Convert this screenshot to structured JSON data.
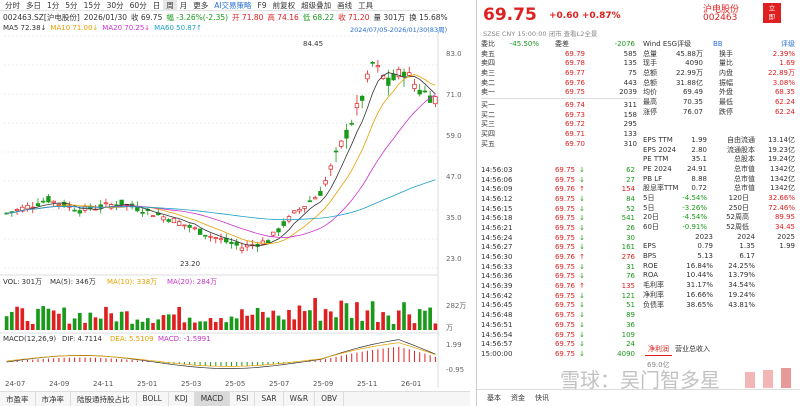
{
  "toolbar": {
    "items": [
      "分时",
      "多日",
      "1分",
      "5分",
      "15分",
      "30分",
      "60分",
      "日",
      "周",
      "月",
      "更多"
    ],
    "active_index": 8,
    "strategy": "AI交易策略",
    "extras": [
      "F9",
      "前复权",
      "超级叠加",
      "画线",
      "工具"
    ]
  },
  "info": {
    "code_name": "002463.SZ[沪电股份]",
    "date": "2026/01/30",
    "close": "收 69.75",
    "change": "幅 -3.26%(-2.35)",
    "open": "开 71.80",
    "high": "高 74.16",
    "low": "低 68.22",
    "close2": "收 71.20",
    "volume": "量 301万",
    "turnover": "换 15.68%"
  },
  "ma": {
    "ma5": "MA5 72.38↓",
    "ma10": "MA10 71.00↓",
    "ma20": "MA20 70.25↓",
    "ma60": "MA60 50.87↑",
    "range": "2024/07/05-2026/01/30(83周)"
  },
  "kline_axis": {
    "ticks": [
      "83.0",
      "71.0",
      "59.0",
      "47.0",
      "35.0",
      "23.0"
    ],
    "high_label": "84.45",
    "low_label": "23.20"
  },
  "vol": {
    "label": "VOL: 301万",
    "ma5": "MA(5): 346万",
    "ma10": "MA(10): 338万",
    "ma20": "MA(20): 284万",
    "ticks": [
      "282万",
      "万"
    ]
  },
  "macd": {
    "label": "MACD(12,26,9)",
    "dif": "DIF: 4.7114",
    "dea": "DEA: 5.5109",
    "macd": "MACD: -1.5991",
    "ticks": [
      "1.99",
      "-0.95"
    ]
  },
  "xaxis": [
    "24-07",
    "24-09",
    "24-11",
    "25-01",
    "25-03",
    "25-05",
    "25-07",
    "25-09",
    "25-11",
    "26-01"
  ],
  "bottom_tabs": [
    "市盈率",
    "市净率",
    "陆股通持股占比",
    "BOLL",
    "KDJ",
    "MACD",
    "RSI",
    "SAR",
    "W&R",
    "OBV"
  ],
  "bottom_active": 5,
  "chart_data": {
    "type": "candlestick",
    "title": "002463.SZ 周K",
    "x": [
      "24-07",
      "24-09",
      "24-11",
      "25-01",
      "25-03",
      "25-05",
      "25-07",
      "25-09",
      "25-11",
      "26-01"
    ],
    "close_approx": [
      36,
      40,
      38,
      36,
      33,
      28,
      42,
      72,
      72,
      69.75
    ],
    "ylim": [
      23,
      85
    ]
  },
  "quote": {
    "price": "69.75",
    "change": "+0.60",
    "pct": "+0.87%",
    "name": "沪电股份",
    "code": "002463",
    "badge": "立即交易",
    "sub": "SZSE  CNY  15:00:00  闭市  查看L2全景"
  },
  "book": {
    "weibi": "委比",
    "weibi_val": "-45.50%",
    "weicha": "委差",
    "weicha_val": "-2076",
    "asks": [
      {
        "label": "卖五",
        "price": "69.79",
        "vol": "585"
      },
      {
        "label": "卖四",
        "price": "69.78",
        "vol": "135"
      },
      {
        "label": "卖三",
        "price": "69.77",
        "vol": "75"
      },
      {
        "label": "卖二",
        "price": "69.76",
        "vol": "443"
      },
      {
        "label": "卖一",
        "price": "69.75",
        "vol": "2039"
      }
    ],
    "bids": [
      {
        "label": "买一",
        "price": "69.74",
        "vol": "311"
      },
      {
        "label": "买二",
        "price": "69.73",
        "vol": "158"
      },
      {
        "label": "买三",
        "price": "69.72",
        "vol": "295"
      },
      {
        "label": "买四",
        "price": "69.71",
        "vol": "133"
      },
      {
        "label": "买五",
        "price": "69.70",
        "vol": "310"
      }
    ]
  },
  "stats": {
    "header": "Wind ESG评级",
    "esg": "BB",
    "rating": "评级",
    "rows": [
      [
        "总量",
        "45.88万",
        "换手",
        "2.39%"
      ],
      [
        "现手",
        "4090",
        "量比",
        "1.69"
      ],
      [
        "总额",
        "22.99万",
        "内盘",
        "22.89万"
      ],
      [
        "总额",
        "31.88亿",
        "振幅",
        "3.08%"
      ],
      [
        "均价",
        "69.49",
        "外盘",
        "68.35"
      ],
      [
        "最高",
        "70.35",
        "最低",
        "62.24"
      ],
      [
        "涨停",
        "76.07",
        "跌停",
        "62.24"
      ]
    ],
    "rows2": [
      [
        "EPS TTM",
        "1.99",
        "自由流通",
        "13.14亿"
      ],
      [
        "EPS 2024",
        "2.80",
        "流通股本",
        "19.23亿"
      ],
      [
        "PE TTM",
        "35.1",
        "总股本",
        "19.24亿"
      ],
      [
        "PE 2024",
        "24.91",
        "总市值",
        "1342亿"
      ],
      [
        "PB LF",
        "8.88",
        "总市值",
        "1342亿"
      ],
      [
        "股息率TTM",
        "0.72",
        "总市值",
        "1342亿"
      ]
    ],
    "perf": [
      [
        "5日",
        "-4.54%",
        "120日",
        "32.66%"
      ],
      [
        "5日",
        "-3.26%",
        "250日",
        "72.46%"
      ],
      [
        "20日",
        "-4.54%",
        "52周高",
        "89.95"
      ],
      [
        "60日",
        "-0.91%",
        "52周低",
        "34.45"
      ]
    ],
    "fin_years": [
      "2023",
      "2024",
      "2025"
    ],
    "fin": [
      [
        "EPS",
        "0.79",
        "1.35",
        "1.99"
      ],
      [
        "BPS",
        "5.13",
        "6.17",
        ""
      ],
      [
        "ROE",
        "16.84%",
        "24.25%",
        ""
      ],
      [
        "ROA",
        "10.44%",
        "13.79%",
        ""
      ],
      [
        "毛利率",
        "31.17%",
        "34.54%",
        ""
      ],
      [
        "净利率",
        "16.66%",
        "19.24%",
        ""
      ],
      [
        "负债率",
        "38.65%",
        "43.81%",
        ""
      ]
    ],
    "tabs": [
      "净利润",
      "营业总收入"
    ],
    "mini_val": "69.0亿"
  },
  "ticks": [
    [
      "14:56:03",
      "69.75",
      "62"
    ],
    [
      "14:56:06",
      "69.75",
      "27"
    ],
    [
      "14:56:09",
      "69.76",
      "154"
    ],
    [
      "14:56:12",
      "69.75",
      "84"
    ],
    [
      "14:56:15",
      "69.75",
      "52"
    ],
    [
      "14:56:18",
      "69.75",
      "541"
    ],
    [
      "14:56:21",
      "69.75",
      "26"
    ],
    [
      "14:56:24",
      "69.75",
      "30"
    ],
    [
      "14:56:27",
      "69.75",
      "161"
    ],
    [
      "14:56:30",
      "69.76",
      "276"
    ],
    [
      "14:56:33",
      "69.75",
      "31"
    ],
    [
      "14:56:36",
      "69.75",
      "76"
    ],
    [
      "14:56:39",
      "69.76",
      "135"
    ],
    [
      "14:56:42",
      "69.75",
      "121"
    ],
    [
      "14:56:45",
      "69.75",
      "51"
    ],
    [
      "14:56:48",
      "69.75",
      "89"
    ],
    [
      "14:56:51",
      "69.75",
      "36"
    ],
    [
      "14:56:54",
      "69.75",
      "109"
    ],
    [
      "14:56:57",
      "69.75",
      "24"
    ],
    [
      "15:00:00",
      "69.75",
      "4090"
    ]
  ],
  "rtools": [
    "基本",
    "资金",
    "快讯"
  ],
  "watermark": "雪球：吴门智多星"
}
